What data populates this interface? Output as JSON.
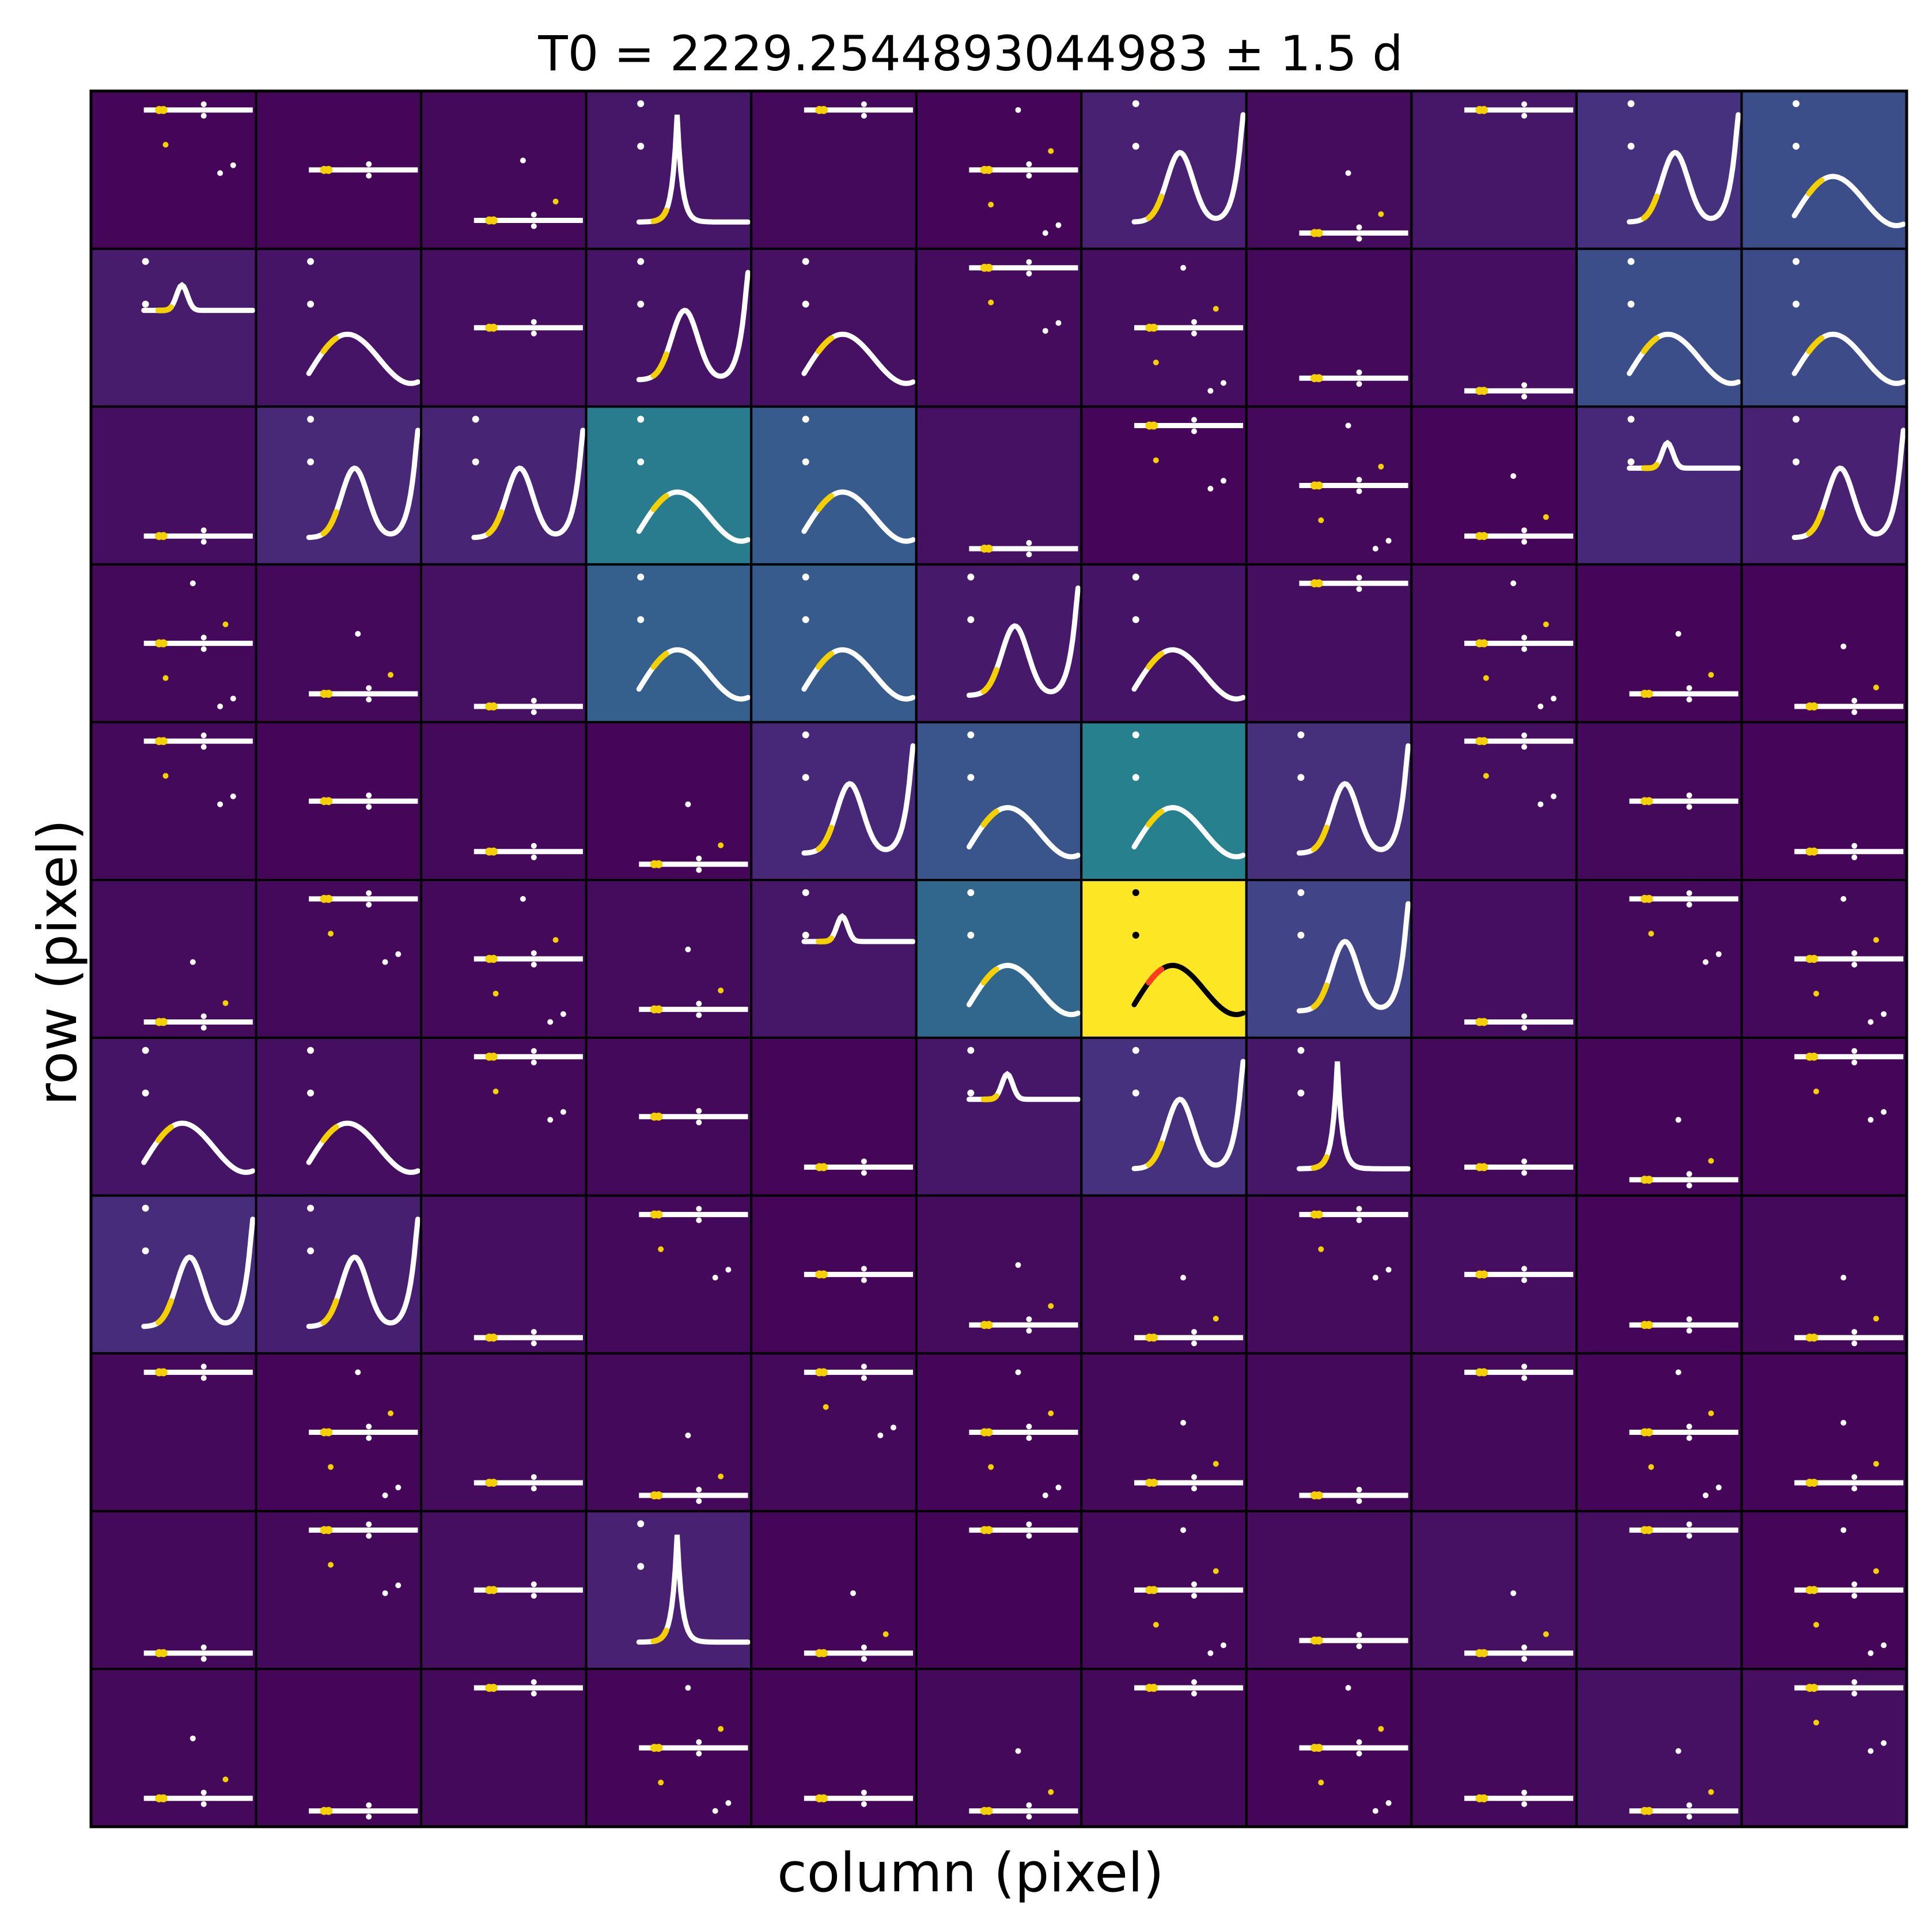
{
  "chart_data": {
    "type": "heatmap",
    "title": "T0 = 2229.2544893044983 ± 1.5 d",
    "xlabel": "column (pixel)",
    "ylabel": "row (pixel)",
    "grid": {
      "rows": 11,
      "cols": 11
    },
    "colormap": "viridis",
    "colors": {
      "cell_edge": "#000000",
      "curve": "#ffffff",
      "in_window": "#f5d000",
      "target_curve": "#000000",
      "target_window": "#ff3d1f"
    },
    "target_cell": {
      "row": 5,
      "col": 6
    },
    "value_range": [
      0,
      1
    ],
    "pixel_values": [
      [
        0.02,
        0.02,
        0.03,
        0.08,
        0.03,
        0.02,
        0.12,
        0.04,
        0.08,
        0.18,
        0.3
      ],
      [
        0.1,
        0.07,
        0.05,
        0.07,
        0.06,
        0.04,
        0.05,
        0.03,
        0.05,
        0.3,
        0.29
      ],
      [
        0.05,
        0.15,
        0.13,
        0.52,
        0.36,
        0.06,
        0.02,
        0.03,
        0.02,
        0.14,
        0.12
      ],
      [
        0.03,
        0.03,
        0.06,
        0.38,
        0.36,
        0.09,
        0.07,
        0.05,
        0.04,
        0.02,
        0.02
      ],
      [
        0.03,
        0.02,
        0.03,
        0.02,
        0.14,
        0.33,
        0.54,
        0.17,
        0.05,
        0.03,
        0.02
      ],
      [
        0.04,
        0.03,
        0.03,
        0.04,
        0.08,
        0.42,
        1.0,
        0.25,
        0.05,
        0.03,
        0.03
      ],
      [
        0.07,
        0.05,
        0.03,
        0.03,
        0.02,
        0.08,
        0.18,
        0.08,
        0.03,
        0.02,
        0.02
      ],
      [
        0.16,
        0.11,
        0.05,
        0.03,
        0.02,
        0.04,
        0.04,
        0.04,
        0.05,
        0.02,
        0.03
      ],
      [
        0.03,
        0.02,
        0.04,
        0.03,
        0.03,
        0.02,
        0.03,
        0.03,
        0.03,
        0.02,
        0.02
      ],
      [
        0.03,
        0.03,
        0.05,
        0.12,
        0.02,
        0.01,
        0.03,
        0.04,
        0.06,
        0.05,
        0.02
      ],
      [
        0.03,
        0.02,
        0.03,
        0.02,
        0.02,
        0.03,
        0.03,
        0.02,
        0.03,
        0.06,
        0.05
      ]
    ],
    "cell_curves": [
      [
        "noisy",
        "flat",
        "noisy",
        "spike",
        "flat",
        "noisy",
        "hump",
        "noisy",
        "flat",
        "hump",
        "wave"
      ],
      [
        "bump",
        "wave",
        "flat",
        "hump",
        "wave",
        "noisy",
        "noisy",
        "flat",
        "flat",
        "wave",
        "wave"
      ],
      [
        "flat",
        "hump",
        "hump",
        "wave",
        "wave",
        "flat",
        "noisy",
        "noisy",
        "noisy",
        "bump",
        "hump"
      ],
      [
        "noisy",
        "noisy",
        "flat",
        "wave",
        "wave",
        "hump",
        "wave",
        "flat",
        "noisy",
        "noisy",
        "noisy"
      ],
      [
        "noisy",
        "flat",
        "flat",
        "noisy",
        "hump",
        "wave",
        "wave",
        "hump",
        "noisy",
        "flat",
        "flat"
      ],
      [
        "noisy",
        "noisy",
        "noisy",
        "noisy",
        "bump",
        "wave",
        "wave",
        "hump",
        "flat",
        "noisy",
        "noisy"
      ],
      [
        "wave",
        "wave",
        "noisy",
        "flat",
        "flat",
        "bump",
        "hump",
        "spike",
        "flat",
        "noisy",
        "noisy"
      ],
      [
        "hump",
        "hump",
        "flat",
        "noisy",
        "flat",
        "noisy",
        "noisy",
        "noisy",
        "flat",
        "flat",
        "noisy"
      ],
      [
        "flat",
        "noisy",
        "flat",
        "noisy",
        "noisy",
        "noisy",
        "noisy",
        "flat",
        "flat",
        "noisy",
        "noisy"
      ],
      [
        "flat",
        "noisy",
        "flat",
        "spike",
        "noisy",
        "flat",
        "noisy",
        "flat",
        "noisy",
        "flat",
        "noisy"
      ],
      [
        "noisy",
        "flat",
        "flat",
        "noisy",
        "flat",
        "noisy",
        "flat",
        "noisy",
        "flat",
        "noisy",
        "noisy"
      ]
    ]
  }
}
